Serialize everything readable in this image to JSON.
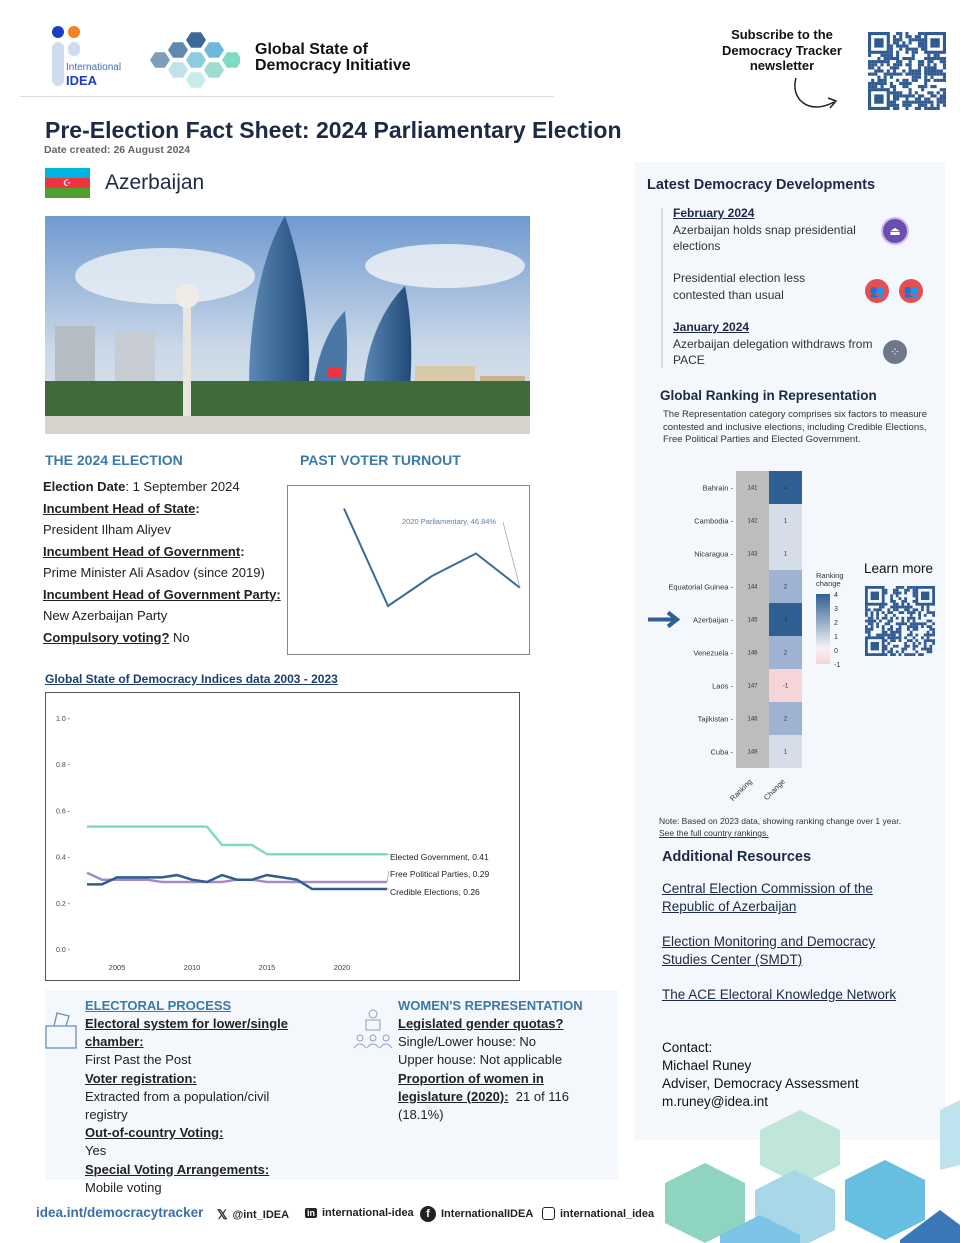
{
  "header": {
    "logo_idea_line1": "International",
    "logo_idea_line2": "IDEA",
    "initiative_line1": "Global State of",
    "initiative_line2": "Democracy Initiative",
    "subscribe_line1": "Subscribe to the",
    "subscribe_line2": "Democracy Tracker",
    "subscribe_line3": "newsletter"
  },
  "title": "Pre-Election Fact Sheet: 2024 Parliamentary Election",
  "date_created": "Date created: 26 August 2024",
  "country": "Azerbaijan",
  "election": {
    "heading": "THE 2024 ELECTION",
    "date_label": "Election Date",
    "date_value": ": 1 September 2024",
    "head_state_label": "Incumbent Head of State",
    "head_state_value": "President Ilham Aliyev",
    "head_gov_label": "Incumbent Head of Government",
    "head_gov_value": "Prime Minister Ali Asadov (since 2019)",
    "party_label": "Incumbent Head of Government Party",
    "party_value": "New Azerbaijan Party",
    "compulsory_label": "Compulsory voting?",
    "compulsory_value": " No",
    "colon": ":"
  },
  "turnout": {
    "heading": "PAST VOTER TURNOUT"
  },
  "indices_link": "Global State of Democracy Indices data 2003 - 2023",
  "chart_data": [
    {
      "type": "line",
      "title": "",
      "values": [
        68,
        42,
        50,
        56,
        46.84
      ],
      "annotation": "2020 Parliamentary, 46.84%",
      "color": "#3a6a9a"
    },
    {
      "type": "line",
      "x": [
        2003,
        2004,
        2005,
        2006,
        2007,
        2008,
        2009,
        2010,
        2011,
        2012,
        2013,
        2014,
        2015,
        2016,
        2017,
        2018,
        2019,
        2020,
        2021,
        2022,
        2023
      ],
      "xticks": [
        "2005",
        "2010",
        "2015",
        "2020"
      ],
      "xtick_values": [
        2005,
        2010,
        2015,
        2020
      ],
      "yticks": [
        "0.0",
        "0.2",
        "0.4",
        "0.6",
        "0.8",
        "1.0"
      ],
      "ylim": [
        0,
        1
      ],
      "series": [
        {
          "name": "Elected Government",
          "label": "Elected Government, 0.41",
          "color": "#7fdcc2",
          "values": [
            0.53,
            0.53,
            0.53,
            0.53,
            0.53,
            0.53,
            0.53,
            0.53,
            0.53,
            0.45,
            0.45,
            0.45,
            0.41,
            0.41,
            0.41,
            0.41,
            0.41,
            0.41,
            0.41,
            0.41,
            0.41
          ]
        },
        {
          "name": "Free Political Parties",
          "label": "Free Political Parties, 0.29",
          "color": "#a48bc8",
          "values": [
            0.33,
            0.3,
            0.3,
            0.3,
            0.3,
            0.29,
            0.29,
            0.29,
            0.29,
            0.29,
            0.3,
            0.3,
            0.29,
            0.29,
            0.29,
            0.29,
            0.29,
            0.29,
            0.29,
            0.29,
            0.29
          ]
        },
        {
          "name": "Credible Elections",
          "label": "Credible Elections, 0.26",
          "color": "#2f5f8f",
          "values": [
            0.28,
            0.28,
            0.31,
            0.31,
            0.31,
            0.31,
            0.32,
            0.3,
            0.29,
            0.32,
            0.3,
            0.3,
            0.32,
            0.31,
            0.3,
            0.26,
            0.26,
            0.26,
            0.26,
            0.26,
            0.26
          ]
        }
      ]
    },
    {
      "type": "heatmap",
      "columns": [
        "Ranking",
        "Change"
      ],
      "rows": [
        "Bahrain",
        "Cambodia",
        "Nicaragua",
        "Equatorial Guinea",
        "Azerbaijan",
        "Venezuela",
        "Laos",
        "Tajikistan",
        "Cuba"
      ],
      "ranking": [
        "141",
        "142",
        "143",
        "144",
        "145",
        "146",
        "147",
        "148",
        "149"
      ],
      "change": [
        "4",
        "1",
        "1",
        "2",
        "4",
        "2",
        "-1",
        "2",
        "1"
      ],
      "legend_title": "Ranking change",
      "legend_ticks": [
        "4",
        "3",
        "2",
        "1",
        "0",
        "-1"
      ],
      "highlight": "Azerbaijan",
      "colors": {
        "4": "#2f5f93",
        "2": "#9db3d1",
        "1": "#d5dde9",
        "-1": "#f6d4d8",
        "ranking": "#bdbdbd"
      }
    }
  ],
  "developments": {
    "heading": "Latest Democracy Developments",
    "items": [
      {
        "date": "February 2024",
        "text": "Azerbaijan holds snap presidential elections",
        "icon": "ballot-icon"
      },
      {
        "date": "",
        "text": "Presidential election less contested than usual",
        "icon": "people-icon"
      },
      {
        "date": "January 2024",
        "text": "Azerbaijan delegation withdraws from PACE",
        "icon": "network-icon"
      }
    ]
  },
  "ranking": {
    "heading": "Global Ranking in Representation",
    "description": "The Representation category comprises six factors to measure contested and inclusive elections, including Credible Elections, Free Political Parties and Elected Government.",
    "learn_more": "Learn more",
    "note": "Note: Based on 2023 data, showing ranking change over 1 year.",
    "see_full": "See the full country rankings."
  },
  "resources": {
    "heading": "Additional Resources",
    "links": [
      "Central Election Commission of the Republic of Azerbaijan",
      "Election Monitoring and Democracy Studies Center (SMDT)",
      "The ACE Electoral Knowledge Network "
    ]
  },
  "contact": {
    "label": "Contact:",
    "name": "Michael Runey",
    "role": "Adviser, Democracy Assessment",
    "email": "m.runey@idea.int"
  },
  "electoral": {
    "heading": "ELECTORAL PROCESS",
    "system_label": "Electoral system for lower/single chamber: ",
    "system_value": "First Past the Post",
    "registration_label": "Voter registration:",
    "registration_value": "Extracted from a population/civil registry",
    "ocv_label": "Out-of-country Voting:",
    "ocv_value": "Yes",
    "sva_label": "Special Voting Arrangements:",
    "sva_value": "Mobile voting"
  },
  "women": {
    "heading": "WOMEN'S REPRESENTATION",
    "quota_label": "Legislated gender quotas?",
    "lower": "Single/Lower house: No",
    "upper": "Upper house: Not applicable",
    "prop_label": "Proportion of women in legislature (2020):",
    "prop_value": "  21 of 116 (18.1%)"
  },
  "footer": {
    "site": "idea.int/democracytracker",
    "x": "@int_IDEA",
    "linkedin": "international-idea",
    "facebook": "InternationalIDEA",
    "instagram": "international_idea"
  }
}
